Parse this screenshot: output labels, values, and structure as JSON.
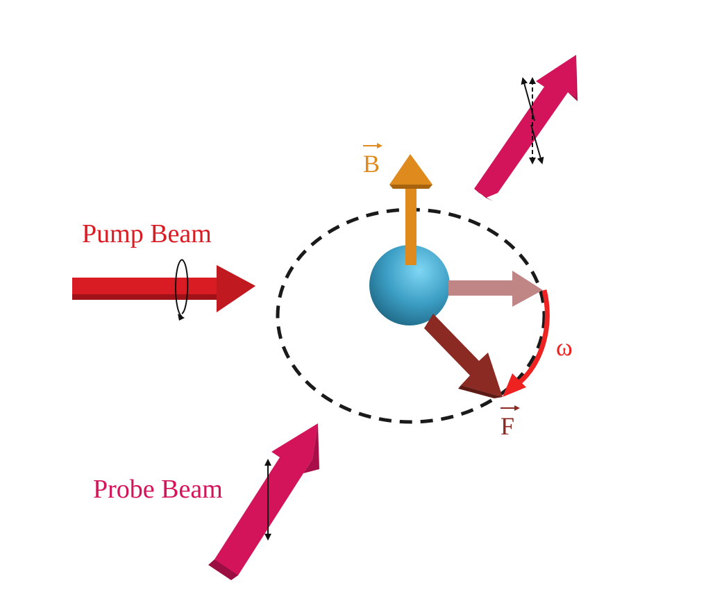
{
  "labels": {
    "pump": "Pump Beam",
    "probe": "Probe Beam",
    "b_vector": "B",
    "f_vector": "F",
    "omega": "ω"
  },
  "colors": {
    "pump": "#d91c24",
    "probe": "#d4145a",
    "b_vector": "#df8a1c",
    "f_vector": "#8b2a22",
    "rotation": "#ef2222",
    "atom": "#4aa9cd",
    "precession_path": "#1a1a1a"
  }
}
